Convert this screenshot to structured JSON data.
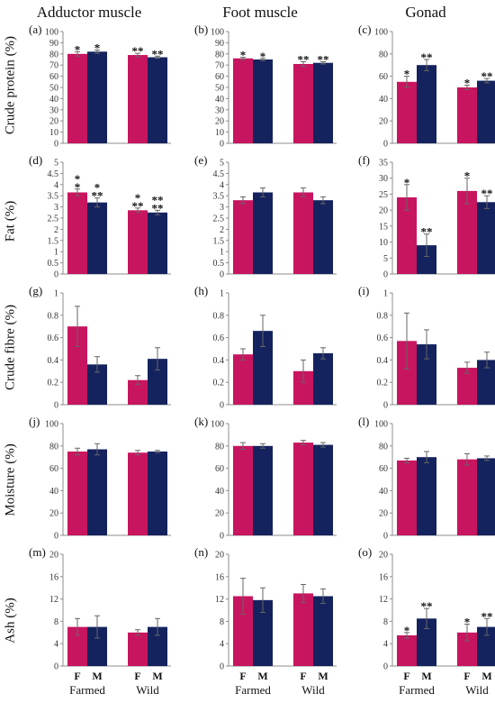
{
  "colors": {
    "female": "#c8155f",
    "male": "#14235e",
    "axis": "#8c8c8c",
    "text": "#111111"
  },
  "column_titles": [
    "Adductor muscle",
    "Foot muscle",
    "Gonad"
  ],
  "row_labels": [
    "Crude protein (%)",
    "Fat (%)",
    "Crude fibre (%)",
    "Moisture (%)",
    "Ash (%)"
  ],
  "sex_labels": {
    "female": "F",
    "male": "M"
  },
  "group_labels": [
    "Farmed",
    "Wild"
  ],
  "chart_data": [
    {
      "panel": "(a)",
      "type": "bar",
      "ylim": [
        0,
        100
      ],
      "yticks": [
        0,
        10,
        20,
        30,
        40,
        50,
        60,
        70,
        80,
        90,
        100
      ],
      "values": [
        80,
        82,
        79,
        77
      ],
      "errors": [
        2,
        1.5,
        1.5,
        1
      ],
      "stars": [
        "*",
        "*",
        "**",
        "**"
      ]
    },
    {
      "panel": "(b)",
      "type": "bar",
      "ylim": [
        0,
        100
      ],
      "yticks": [
        0,
        10,
        20,
        30,
        40,
        50,
        60,
        70,
        80,
        90,
        100
      ],
      "values": [
        76,
        75,
        71,
        72
      ],
      "errors": [
        1,
        1,
        2,
        1
      ],
      "stars": [
        "*",
        "*",
        "**",
        "**"
      ]
    },
    {
      "panel": "(c)",
      "type": "bar",
      "ylim": [
        0,
        100
      ],
      "yticks": [
        0,
        20,
        40,
        60,
        80,
        100
      ],
      "values": [
        55,
        70,
        50,
        56
      ],
      "errors": [
        5,
        5,
        2,
        2
      ],
      "stars": [
        "*",
        "**",
        "*",
        "**"
      ]
    },
    {
      "panel": "(d)",
      "type": "bar",
      "ylim": [
        0,
        5
      ],
      "yticks": [
        0,
        0.5,
        1,
        1.5,
        2,
        2.5,
        3,
        3.5,
        4,
        4.5,
        5
      ],
      "values": [
        3.65,
        3.2,
        2.85,
        2.75
      ],
      "errors": [
        0.15,
        0.2,
        0.1,
        0.1
      ],
      "stars": [
        "*\n*",
        "*\n**",
        "*\n**",
        "**\n**"
      ]
    },
    {
      "panel": "(e)",
      "type": "bar",
      "ylim": [
        0,
        5
      ],
      "yticks": [
        0,
        0.5,
        1,
        1.5,
        2,
        2.5,
        3,
        3.5,
        4,
        4.5,
        5
      ],
      "values": [
        3.3,
        3.65,
        3.65,
        3.3
      ],
      "errors": [
        0.15,
        0.2,
        0.2,
        0.15
      ],
      "stars": [
        "",
        "",
        "",
        ""
      ]
    },
    {
      "panel": "(f)",
      "type": "bar",
      "ylim": [
        0,
        35
      ],
      "yticks": [
        0,
        5,
        10,
        15,
        20,
        25,
        30,
        35
      ],
      "values": [
        24,
        9,
        26,
        22.5
      ],
      "errors": [
        4,
        3.5,
        4,
        2
      ],
      "stars": [
        "*",
        "**",
        "*",
        "**"
      ]
    },
    {
      "panel": "(g)",
      "type": "bar",
      "ylim": [
        0,
        1
      ],
      "yticks": [
        0,
        0.2,
        0.4,
        0.6,
        0.8,
        1
      ],
      "values": [
        0.7,
        0.36,
        0.22,
        0.41
      ],
      "errors": [
        0.18,
        0.07,
        0.04,
        0.1
      ],
      "stars": [
        "",
        "",
        "",
        ""
      ]
    },
    {
      "panel": "(h)",
      "type": "bar",
      "ylim": [
        0,
        1
      ],
      "yticks": [
        0,
        0.2,
        0.4,
        0.6,
        0.8,
        1
      ],
      "values": [
        0.45,
        0.66,
        0.3,
        0.46
      ],
      "errors": [
        0.05,
        0.14,
        0.1,
        0.05
      ],
      "stars": [
        "",
        "",
        "",
        ""
      ]
    },
    {
      "panel": "(i)",
      "type": "bar",
      "ylim": [
        0,
        1
      ],
      "yticks": [
        0,
        0.2,
        0.4,
        0.6,
        0.8,
        1
      ],
      "values": [
        0.57,
        0.54,
        0.33,
        0.4
      ],
      "errors": [
        0.25,
        0.13,
        0.05,
        0.07
      ],
      "stars": [
        "",
        "",
        "",
        ""
      ]
    },
    {
      "panel": "(j)",
      "type": "bar",
      "ylim": [
        0,
        100
      ],
      "yticks": [
        0,
        20,
        40,
        60,
        80,
        100
      ],
      "values": [
        75,
        77,
        74,
        75
      ],
      "errors": [
        3,
        5,
        2,
        1
      ],
      "stars": [
        "",
        "",
        "",
        ""
      ]
    },
    {
      "panel": "(k)",
      "type": "bar",
      "ylim": [
        0,
        100
      ],
      "yticks": [
        0,
        20,
        40,
        60,
        80,
        100
      ],
      "values": [
        80,
        80,
        83,
        81
      ],
      "errors": [
        3,
        2,
        2,
        2
      ],
      "stars": [
        "",
        "",
        "",
        ""
      ]
    },
    {
      "panel": "(l)",
      "type": "bar",
      "ylim": [
        0,
        100
      ],
      "yticks": [
        0,
        20,
        40,
        60,
        80,
        100
      ],
      "values": [
        67,
        70,
        68,
        69
      ],
      "errors": [
        2,
        5,
        5,
        2
      ],
      "stars": [
        "",
        "",
        "",
        ""
      ]
    },
    {
      "panel": "(m)",
      "type": "bar",
      "ylim": [
        0,
        20
      ],
      "yticks": [
        0,
        4,
        8,
        12,
        16,
        20
      ],
      "values": [
        7,
        7,
        6,
        7
      ],
      "errors": [
        1.5,
        2,
        0.5,
        1.5
      ],
      "stars": [
        "",
        "",
        "",
        ""
      ]
    },
    {
      "panel": "(n)",
      "type": "bar",
      "ylim": [
        0,
        20
      ],
      "yticks": [
        0,
        4,
        8,
        12,
        16,
        20
      ],
      "values": [
        12.5,
        11.8,
        13,
        12.5
      ],
      "errors": [
        3.2,
        2.2,
        1.6,
        1.3
      ],
      "stars": [
        "",
        "",
        "",
        ""
      ]
    },
    {
      "panel": "(o)",
      "type": "bar",
      "ylim": [
        0,
        20
      ],
      "yticks": [
        0,
        4,
        8,
        12,
        16,
        20
      ],
      "values": [
        5.5,
        8.5,
        6,
        7
      ],
      "errors": [
        0.5,
        1.8,
        1.5,
        1.5
      ],
      "stars": [
        "*",
        "**",
        "*",
        "**"
      ]
    }
  ]
}
